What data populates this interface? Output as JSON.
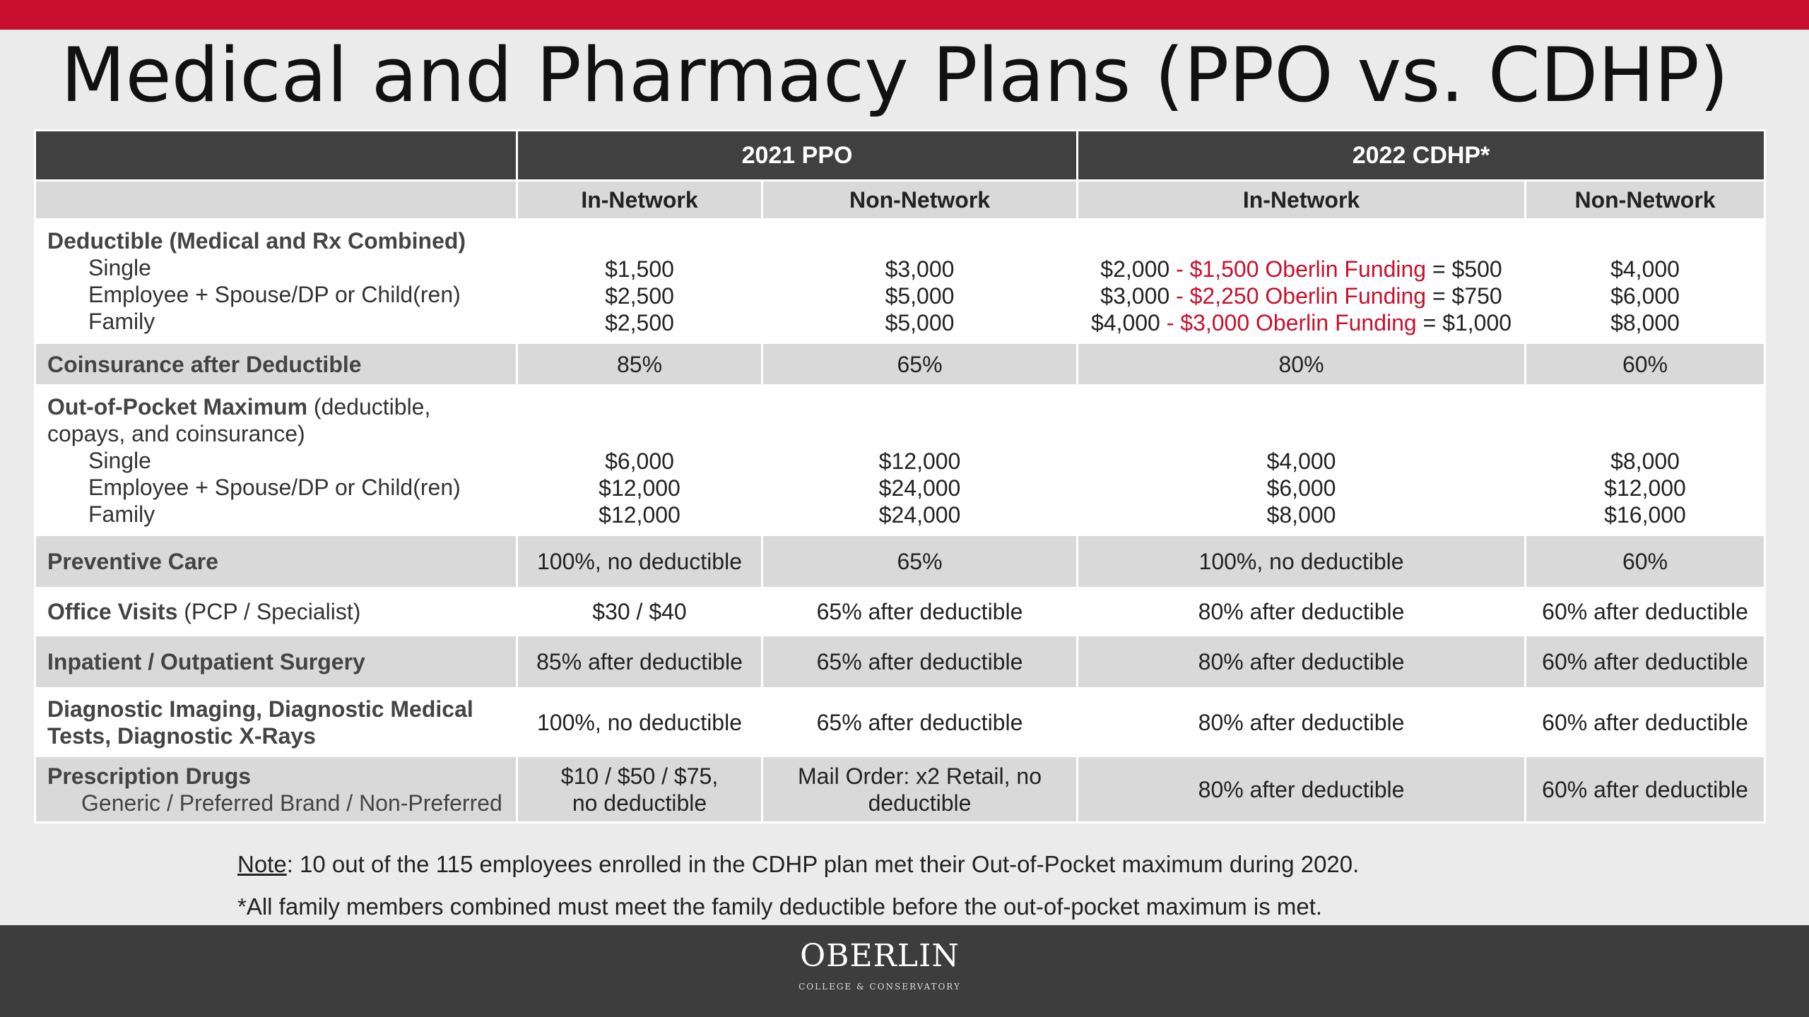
{
  "title": "Medical and Pharmacy Plans (PPO vs. CDHP)",
  "headers": {
    "group_ppo": "2021 PPO",
    "group_cdhp": "2022 CDHP*",
    "ppo_in": "In-Network",
    "ppo_non": "Non-Network",
    "cdhp_in": "In-Network",
    "cdhp_non": "Non-Network"
  },
  "rows": {
    "deductible": {
      "label": "Deductible (Medical and Rx Combined)",
      "sub": [
        "Single",
        "Employee + Spouse/DP or Child(ren)",
        "Family"
      ],
      "ppo_in": [
        "$1,500",
        "$2,500",
        "$2,500"
      ],
      "ppo_non": [
        "$3,000",
        "$5,000",
        "$5,000"
      ],
      "cdhp_in": [
        {
          "base": "$2,000",
          "funding": "- $1,500 Oberlin Funding",
          "result": "= $500"
        },
        {
          "base": "$3,000",
          "funding": "- $2,250 Oberlin Funding",
          "result": "= $750"
        },
        {
          "base": "$4,000",
          "funding": "- $3,000 Oberlin Funding",
          "result": "= $1,000"
        }
      ],
      "cdhp_non": [
        "$4,000",
        "$6,000",
        "$8,000"
      ]
    },
    "coinsurance": {
      "label": "Coinsurance after Deductible",
      "ppo_in": "85%",
      "ppo_non": "65%",
      "cdhp_in": "80%",
      "cdhp_non": "60%"
    },
    "oop": {
      "label_bold": "Out-of-Pocket Maximum",
      "label_rest": " (deductible,",
      "label_line2": "copays, and coinsurance)",
      "sub": [
        "Single",
        "Employee + Spouse/DP or Child(ren)",
        "Family"
      ],
      "ppo_in": [
        "$6,000",
        "$12,000",
        "$12,000"
      ],
      "ppo_non": [
        "$12,000",
        "$24,000",
        "$24,000"
      ],
      "cdhp_in": [
        "$4,000",
        "$6,000",
        "$8,000"
      ],
      "cdhp_non": [
        "$8,000",
        "$12,000",
        "$16,000"
      ]
    },
    "preventive": {
      "label": "Preventive Care",
      "ppo_in": "100%, no deductible",
      "ppo_non": "65%",
      "cdhp_in": "100%, no deductible",
      "cdhp_non": "60%"
    },
    "office": {
      "label_bold": "Office Visits",
      "label_rest": " (PCP / Specialist)",
      "ppo_in": "$30 / $40",
      "ppo_non": "65% after deductible",
      "cdhp_in": "80% after deductible",
      "cdhp_non": "60% after deductible"
    },
    "surgery": {
      "label": "Inpatient / Outpatient Surgery",
      "ppo_in": "85% after deductible",
      "ppo_non": "65% after deductible",
      "cdhp_in": "80% after deductible",
      "cdhp_non": "60% after deductible"
    },
    "imaging": {
      "label_line1": "Diagnostic Imaging, Diagnostic Medical",
      "label_line2": "Tests, Diagnostic X-Rays",
      "ppo_in": "100%, no deductible",
      "ppo_non": "65% after deductible",
      "cdhp_in": "80% after deductible",
      "cdhp_non": "60% after deductible"
    },
    "rx": {
      "label": "Prescription Drugs",
      "sub": "Generic / Preferred Brand / Non-Preferred",
      "ppo_in_line1": "$10 / $50 / $75,",
      "ppo_in_line2": "no deductible",
      "ppo_non_line1": "Mail Order: x2 Retail, no",
      "ppo_non_line2": "deductible",
      "cdhp_in": "80% after deductible",
      "cdhp_non": "60% after deductible"
    }
  },
  "notes": {
    "note_label": "Note",
    "note_text": ": 10 out of the 115 employees enrolled in the CDHP plan met their Out-of-Pocket maximum during 2020.",
    "footnote": "*All family members combined must meet the family deductible before the out-of-pocket maximum is met."
  },
  "footer": {
    "logo_main": "OBERLIN",
    "logo_sub": "COLLEGE & CONSERVATORY"
  },
  "colors": {
    "accent_red": "#c8102e",
    "header_dark": "#404040",
    "row_gray": "#d9d9d9",
    "footer": "#3d3d3d"
  }
}
